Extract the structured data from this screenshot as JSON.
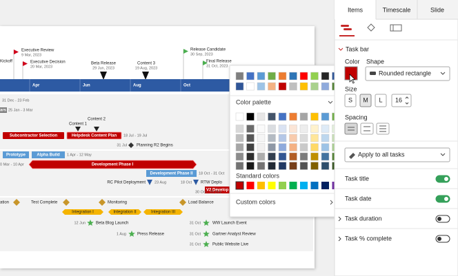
{
  "timeline": {
    "months": [
      "Apr",
      "Jun",
      "Aug",
      "Oct"
    ],
    "milestones": [
      {
        "label": "Executive Review",
        "date": "9 Mar, 2023"
      },
      {
        "label": "Kickoff"
      },
      {
        "label": "Executive Decision",
        "date": "20 Mar, 2023"
      },
      {
        "label": "Beta Release",
        "date": "29 Jun, 2023"
      },
      {
        "label": "Content 3",
        "date": "19 Aug, 2023"
      },
      {
        "label": "Release Candidate",
        "date": "30 Sep, 2023"
      },
      {
        "label": "Final Release",
        "date": "31 Oct, 2023"
      }
    ],
    "rows": {
      "r1_date": "31 Dec - 23 Feb",
      "r2_box": "ars",
      "r2_date": "25 Jan - 3 Mar",
      "content1": "Content 1",
      "content2": "Content 2",
      "subcontractor": "Subcontractor Selection",
      "helpdesk": "Helpdesk Content Plan",
      "helpdesk_date": "18 Jul - 19 Jul",
      "planning_date": "31 Jul",
      "planning": "Planning R2 Begins",
      "prototype": "Prototype",
      "alpha": "Alpha Build",
      "alpha_date": "1 Apr - 12 May",
      "dev1_date": "0 Mar - 10 Apr",
      "dev1": "Development Phase I",
      "dev2": "Development Phase II",
      "dev2_date": "18 Oct - 31 Oct",
      "rc": "RC Pilot Deployment",
      "rc_date": "23 Aug",
      "rtw_date": "18 Oct",
      "rtw": "RTW Deplo",
      "v2": "V2 Develop",
      "v2_date": "30 Oct - 25 Dec",
      "ation": "ation",
      "test": "Test Complete",
      "monitoring": "Monitoring",
      "load": "Load Balance",
      "int1": "Integration I",
      "int2": "Integration II",
      "int3": "Integration III",
      "blog_date": "12 Jun",
      "blog": "Beta Blog Launch",
      "ww_date": "31 Oct",
      "ww": "WW Launch Event",
      "press_date": "1 Aug",
      "press": "Press Release",
      "gartner_date": "31 Oct",
      "gartner": "Gartner Analyst Review",
      "web_date": "31 Oct",
      "web": "Public Website Live"
    }
  },
  "color_popup": {
    "palette": "Color palette",
    "standard": "Standard colors",
    "custom": "Custom colors"
  },
  "panel": {
    "tabs": [
      "Items",
      "Timescale",
      "Slide"
    ],
    "section": "Task bar",
    "color_label": "Color",
    "shape_label": "Shape",
    "shape_value": "Rounded rectangle",
    "size_label": "Size",
    "sizes": [
      "S",
      "M",
      "L"
    ],
    "font_size": "16",
    "spacing_label": "Spacing",
    "apply": "Apply to all tasks",
    "toggles": [
      "Task title",
      "Task date",
      "Task duration",
      "Task % complete"
    ]
  }
}
